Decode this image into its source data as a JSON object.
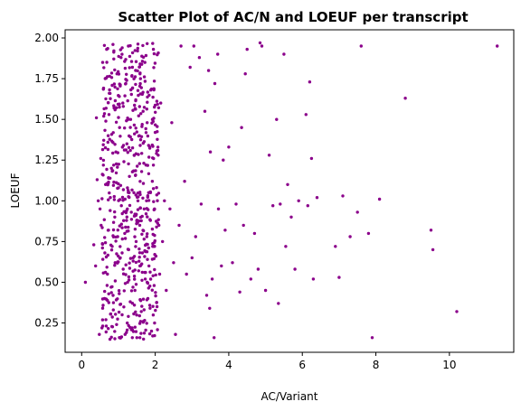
{
  "chart_data": {
    "type": "scatter",
    "title": "Scatter Plot of AC/N and LOEUF per transcript",
    "xlabel": "AC/Variant",
    "ylabel": "LOEUF",
    "xlim": [
      -0.45,
      11.75
    ],
    "ylim": [
      0.07,
      2.05
    ],
    "xticks": [
      0,
      2,
      4,
      6,
      8,
      10
    ],
    "yticks": [
      0.25,
      0.5,
      0.75,
      1.0,
      1.25,
      1.5,
      1.75,
      2.0
    ],
    "xtick_labels": [
      "0",
      "2",
      "4",
      "6",
      "8",
      "10"
    ],
    "ytick_labels": [
      "0.25",
      "0.50",
      "0.75",
      "1.00",
      "1.25",
      "1.50",
      "1.75",
      "2.00"
    ],
    "grid": false,
    "legend": "none",
    "marker_color": "#8b008b",
    "cluster_points_note": "",
    "series": [
      {
        "points": [
          [
            0.1,
            0.5
          ],
          [
            0.33,
            0.73
          ],
          [
            0.38,
            0.6
          ],
          [
            0.4,
            1.51
          ],
          [
            0.42,
            1.13
          ],
          [
            0.45,
            1.0
          ],
          [
            0.48,
            0.18
          ],
          [
            0.5,
            0.95
          ],
          [
            0.52,
            1.26
          ],
          [
            0.53,
            0.85
          ],
          [
            0.55,
            0.22
          ],
          [
            0.57,
            1.85
          ],
          [
            0.6,
            1.52
          ],
          [
            0.62,
            0.4
          ],
          [
            0.63,
            0.68
          ],
          [
            0.65,
            1.1
          ],
          [
            0.66,
            0.27
          ],
          [
            0.68,
            1.93
          ],
          [
            0.7,
            0.55
          ],
          [
            0.72,
            1.4
          ],
          [
            0.73,
            0.82
          ],
          [
            0.75,
            1.66
          ],
          [
            0.77,
            0.15
          ],
          [
            0.78,
            1.02
          ],
          [
            0.8,
            0.47
          ],
          [
            0.81,
            1.2
          ],
          [
            0.83,
            0.72
          ],
          [
            0.85,
            1.96
          ],
          [
            0.86,
            0.33
          ],
          [
            0.88,
            1.57
          ],
          [
            0.9,
            0.9
          ],
          [
            0.91,
            0.62
          ],
          [
            0.93,
            1.3
          ],
          [
            0.95,
            0.24
          ],
          [
            0.96,
            1.78
          ],
          [
            0.98,
            0.78
          ],
          [
            1.0,
            1.08
          ],
          [
            1.02,
            0.43
          ],
          [
            1.03,
            1.45
          ],
          [
            1.05,
            0.65
          ],
          [
            1.07,
            1.88
          ],
          [
            1.08,
            0.97
          ],
          [
            1.1,
            0.3
          ],
          [
            1.12,
            1.6
          ],
          [
            1.13,
            0.58
          ],
          [
            1.15,
            1.24
          ],
          [
            1.17,
            0.8
          ],
          [
            1.18,
            0.18
          ],
          [
            1.2,
            1.72
          ],
          [
            1.22,
            0.88
          ],
          [
            1.23,
            1.35
          ],
          [
            1.25,
            0.5
          ],
          [
            1.27,
            1.95
          ],
          [
            1.28,
            0.7
          ],
          [
            1.3,
            1.15
          ],
          [
            1.32,
            0.38
          ],
          [
            1.33,
            1.5
          ],
          [
            1.35,
            0.93
          ],
          [
            1.37,
            0.22
          ],
          [
            1.38,
            1.82
          ],
          [
            1.4,
            0.63
          ],
          [
            1.42,
            1.05
          ],
          [
            1.43,
            1.28
          ],
          [
            1.45,
            0.45
          ],
          [
            1.47,
            1.62
          ],
          [
            1.48,
            0.75
          ],
          [
            1.5,
            0.16
          ],
          [
            1.52,
            1.92
          ],
          [
            1.53,
            1.0
          ],
          [
            1.55,
            0.57
          ],
          [
            1.57,
            1.4
          ],
          [
            1.58,
            0.85
          ],
          [
            1.6,
            1.75
          ],
          [
            1.62,
            0.32
          ],
          [
            1.63,
            1.18
          ],
          [
            1.65,
            0.68
          ],
          [
            1.67,
            1.55
          ],
          [
            1.68,
            0.26
          ],
          [
            1.7,
            0.95
          ],
          [
            1.72,
            1.85
          ],
          [
            1.73,
            0.52
          ],
          [
            1.75,
            1.22
          ],
          [
            1.77,
            0.78
          ],
          [
            1.78,
            1.48
          ],
          [
            1.8,
            0.4
          ],
          [
            1.82,
            1.05
          ],
          [
            1.83,
            0.6
          ],
          [
            1.85,
            1.33
          ],
          [
            1.87,
            0.88
          ],
          [
            1.88,
            1.68
          ],
          [
            1.9,
            0.2
          ],
          [
            1.92,
            1.12
          ],
          [
            1.93,
            0.72
          ],
          [
            1.95,
            1.93
          ],
          [
            1.97,
            0.48
          ],
          [
            1.98,
            0.95
          ],
          [
            2.0,
            1.42
          ],
          [
            2.02,
            0.66
          ],
          [
            2.05,
            0.35
          ],
          [
            2.08,
            1.28
          ],
          [
            2.1,
            0.85
          ],
          [
            2.12,
            0.55
          ],
          [
            2.15,
            1.6
          ],
          [
            2.2,
            0.75
          ],
          [
            2.25,
            1.0
          ],
          [
            2.3,
            0.45
          ],
          [
            2.4,
            0.95
          ],
          [
            2.45,
            1.48
          ],
          [
            2.5,
            0.62
          ],
          [
            2.55,
            0.18
          ],
          [
            2.65,
            0.85
          ],
          [
            2.7,
            1.95
          ],
          [
            2.8,
            1.12
          ],
          [
            2.85,
            0.55
          ],
          [
            2.95,
            1.82
          ],
          [
            3.0,
            0.65
          ],
          [
            3.05,
            1.95
          ],
          [
            3.1,
            0.78
          ],
          [
            3.2,
            1.88
          ],
          [
            3.25,
            0.98
          ],
          [
            3.35,
            1.55
          ],
          [
            3.4,
            0.42
          ],
          [
            3.45,
            1.8
          ],
          [
            3.48,
            0.34
          ],
          [
            3.5,
            1.3
          ],
          [
            3.55,
            0.52
          ],
          [
            3.6,
            0.16
          ],
          [
            3.62,
            1.72
          ],
          [
            3.7,
            1.9
          ],
          [
            3.72,
            0.95
          ],
          [
            3.8,
            0.6
          ],
          [
            3.85,
            1.25
          ],
          [
            3.9,
            0.82
          ],
          [
            4.0,
            1.33
          ],
          [
            4.1,
            0.62
          ],
          [
            4.2,
            0.98
          ],
          [
            4.3,
            0.44
          ],
          [
            4.35,
            1.45
          ],
          [
            4.4,
            0.85
          ],
          [
            4.45,
            1.78
          ],
          [
            4.5,
            1.93
          ],
          [
            4.6,
            0.52
          ],
          [
            4.7,
            0.8
          ],
          [
            4.8,
            0.58
          ],
          [
            4.85,
            1.97
          ],
          [
            4.9,
            1.95
          ],
          [
            5.0,
            0.45
          ],
          [
            5.1,
            1.28
          ],
          [
            5.2,
            0.97
          ],
          [
            5.3,
            1.5
          ],
          [
            5.35,
            0.37
          ],
          [
            5.4,
            0.98
          ],
          [
            5.5,
            1.9
          ],
          [
            5.55,
            0.72
          ],
          [
            5.6,
            1.1
          ],
          [
            5.7,
            0.9
          ],
          [
            5.8,
            0.58
          ],
          [
            5.9,
            1.0
          ],
          [
            6.1,
            1.53
          ],
          [
            6.15,
            0.97
          ],
          [
            6.2,
            1.73
          ],
          [
            6.25,
            1.26
          ],
          [
            6.3,
            0.52
          ],
          [
            6.4,
            1.02
          ],
          [
            6.9,
            0.72
          ],
          [
            7.0,
            0.53
          ],
          [
            7.1,
            1.03
          ],
          [
            7.3,
            0.78
          ],
          [
            7.5,
            0.93
          ],
          [
            7.6,
            1.95
          ],
          [
            7.8,
            0.8
          ],
          [
            7.9,
            0.16
          ],
          [
            8.1,
            1.01
          ],
          [
            8.8,
            1.63
          ],
          [
            9.5,
            0.82
          ],
          [
            9.55,
            0.7
          ],
          [
            10.2,
            0.32
          ],
          [
            11.3,
            1.95
          ]
        ]
      }
    ]
  }
}
